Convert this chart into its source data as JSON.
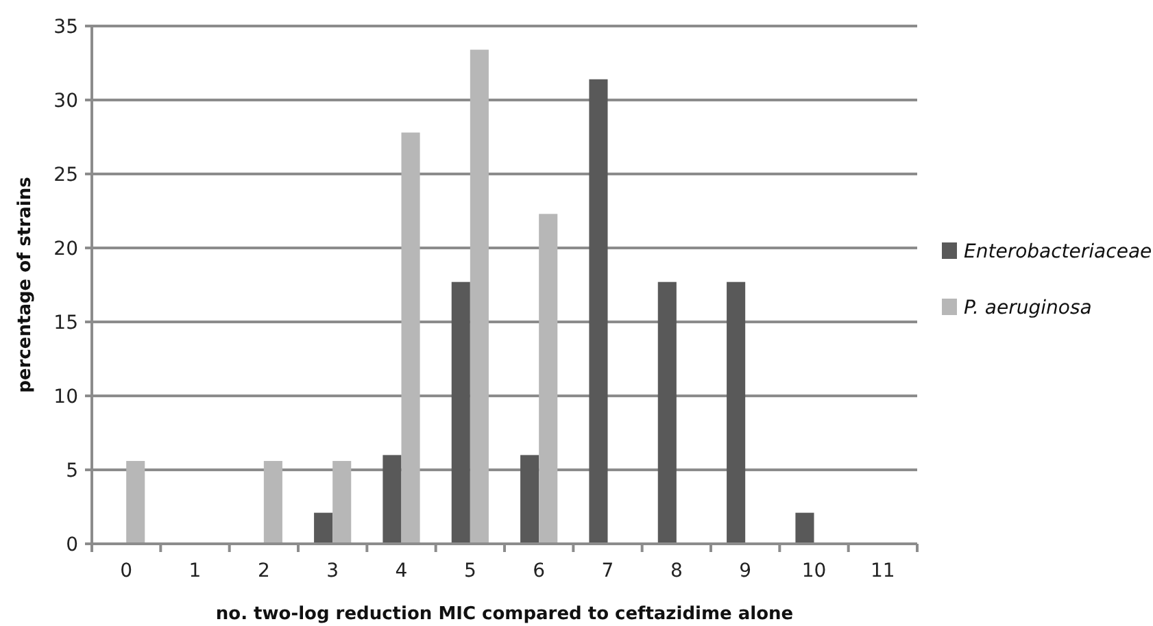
{
  "chart_data": {
    "type": "bar",
    "xlabel": "no. two-log reduction MIC compared to ceftazidime alone",
    "ylabel": "percentage of strains",
    "categories": [
      "0",
      "1",
      "2",
      "3",
      "4",
      "5",
      "6",
      "7",
      "8",
      "9",
      "10",
      "11"
    ],
    "series": [
      {
        "name": "Enterobacteriaceae",
        "color": "#595959",
        "values": [
          0,
          0,
          0,
          2.1,
          6.0,
          17.7,
          6.0,
          31.4,
          17.7,
          17.7,
          2.1,
          0
        ]
      },
      {
        "name": "P. aeruginosa",
        "color": "#b7b7b7",
        "values": [
          5.6,
          0,
          5.6,
          5.6,
          27.8,
          33.4,
          22.3,
          0,
          0,
          0,
          0,
          0
        ]
      }
    ],
    "ylim": [
      0,
      35
    ],
    "yticks": [
      0,
      5,
      10,
      15,
      20,
      25,
      30,
      35
    ],
    "grid": "y",
    "legend": "right"
  }
}
